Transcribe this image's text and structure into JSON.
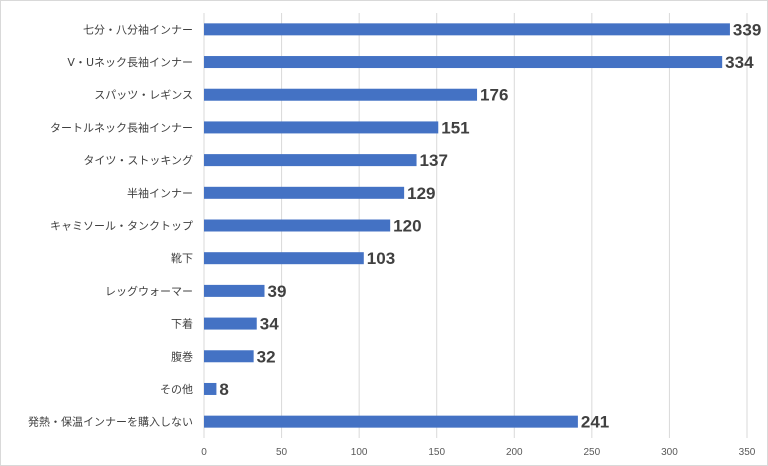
{
  "chart_data": {
    "type": "bar",
    "orientation": "horizontal",
    "categories": [
      "七分・八分袖インナー",
      "V・Uネック長袖インナー",
      "スパッツ・レギンス",
      "タートルネック長袖インナー",
      "タイツ・ストッキング",
      "半袖インナー",
      "キャミソール・タンクトップ",
      "靴下",
      "レッグウォーマー",
      "下着",
      "腹巻",
      "その他",
      "発熱・保温インナーを購入しない"
    ],
    "values": [
      339,
      334,
      176,
      151,
      137,
      129,
      120,
      103,
      39,
      34,
      32,
      8,
      241
    ],
    "data_labels": [
      "339",
      "334",
      "176",
      "151",
      "137",
      "129",
      "120",
      "103",
      "39",
      "34",
      "32",
      "8",
      "241"
    ],
    "xlim": [
      0,
      350
    ],
    "xticks": [
      "0",
      "50",
      "100",
      "150",
      "200",
      "250",
      "300",
      "350"
    ],
    "grid": true,
    "bar_color": "#4472C4",
    "grid_color": "#d9d9d9"
  }
}
